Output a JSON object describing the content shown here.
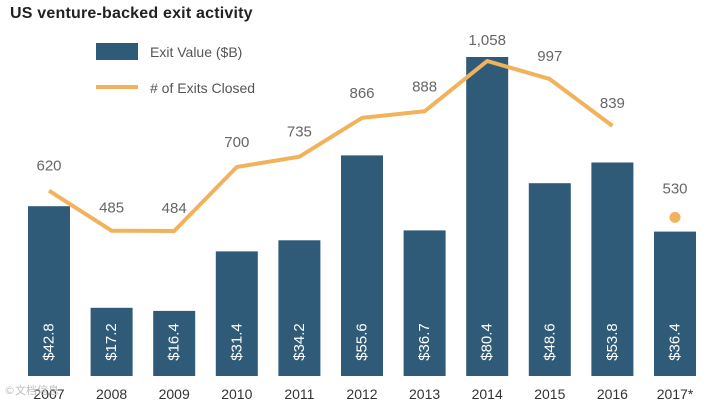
{
  "chart_data": {
    "type": "bar",
    "title": "US venture-backed exit activity",
    "categories": [
      "2007",
      "2008",
      "2009",
      "2010",
      "2011",
      "2012",
      "2013",
      "2014",
      "2015",
      "2016",
      "2017*"
    ],
    "series": [
      {
        "name": "Exit Value ($B)",
        "kind": "bar",
        "values": [
          42.8,
          17.2,
          16.4,
          31.4,
          34.2,
          55.6,
          36.7,
          80.4,
          48.6,
          53.8,
          36.4
        ],
        "labels": [
          "$42.8",
          "$17.2",
          "$16.4",
          "$31.4",
          "$34.2",
          "$55.6",
          "$36.7",
          "$80.4",
          "$48.6",
          "$53.8",
          "$36.4"
        ]
      },
      {
        "name": "# of Exits Closed",
        "kind": "line",
        "values": [
          620,
          485,
          484,
          700,
          735,
          866,
          888,
          1058,
          997,
          839,
          530
        ],
        "labels": [
          "620",
          "485",
          "484",
          "700",
          "735",
          "866",
          "888",
          "1,058",
          "997",
          "839",
          "530"
        ]
      }
    ],
    "legend_position": "top-left",
    "grid": false,
    "colors": {
      "bar": "#2f5b78",
      "line": "#f2b25c",
      "bar_label": "#ffffff",
      "point_label": "#666666",
      "tick_label": "#333333"
    }
  },
  "watermark": "©文档信息"
}
